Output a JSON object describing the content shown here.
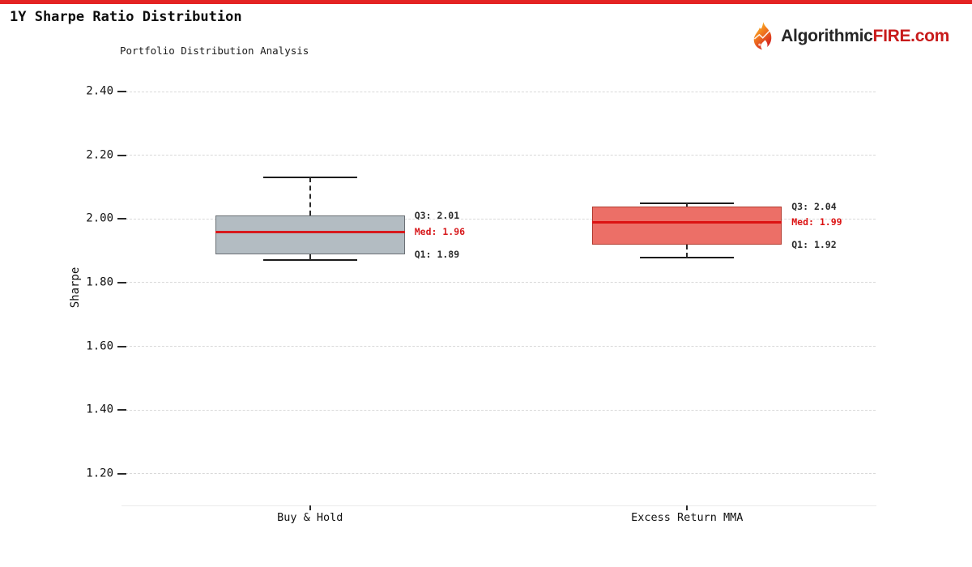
{
  "page": {
    "top_bar_color": "#e42323",
    "title": "1Y Sharpe Ratio Distribution",
    "logo": {
      "icon": "flame-icon",
      "brand_black": "Algorithmic",
      "brand_red": "FIRE.com"
    }
  },
  "chart_data": {
    "type": "boxplot",
    "title": "Portfolio Distribution Analysis",
    "ylabel": "Sharpe",
    "ylim": [
      1.1,
      2.46
    ],
    "yticks": [
      2.4,
      2.2,
      2.0,
      1.8,
      1.6,
      1.4,
      1.2
    ],
    "grid": "dashed-horizontal",
    "legend": "none",
    "categories": [
      "Buy & Hold",
      "Excess Return MMA"
    ],
    "series": [
      {
        "name": "Buy & Hold",
        "q1": 1.89,
        "median": 1.96,
        "q3": 2.01,
        "whisker_low": 1.87,
        "whisker_high": 2.13,
        "fill": "#b3bcc2",
        "border": "#6b7075",
        "median_color": "#d7191c",
        "annotations": [
          {
            "text": "Q3: 2.01",
            "value": 2.01,
            "color": "#2b2b2b"
          },
          {
            "text": "Med: 1.96",
            "value": 1.96,
            "color": "#d7191c"
          },
          {
            "text": "Q1: 1.89",
            "value": 1.89,
            "color": "#2b2b2b"
          }
        ]
      },
      {
        "name": "Excess Return MMA",
        "q1": 1.92,
        "median": 1.99,
        "q3": 2.04,
        "whisker_low": 1.88,
        "whisker_high": 2.05,
        "fill": "#ec6f67",
        "border": "#b23a2e",
        "median_color": "#dc1212",
        "annotations": [
          {
            "text": "Q3: 2.04",
            "value": 2.04,
            "color": "#2b2b2b"
          },
          {
            "text": "Med: 1.99",
            "value": 1.99,
            "color": "#dc1212"
          },
          {
            "text": "Q1: 1.92",
            "value": 1.92,
            "color": "#2b2b2b"
          }
        ]
      }
    ]
  }
}
